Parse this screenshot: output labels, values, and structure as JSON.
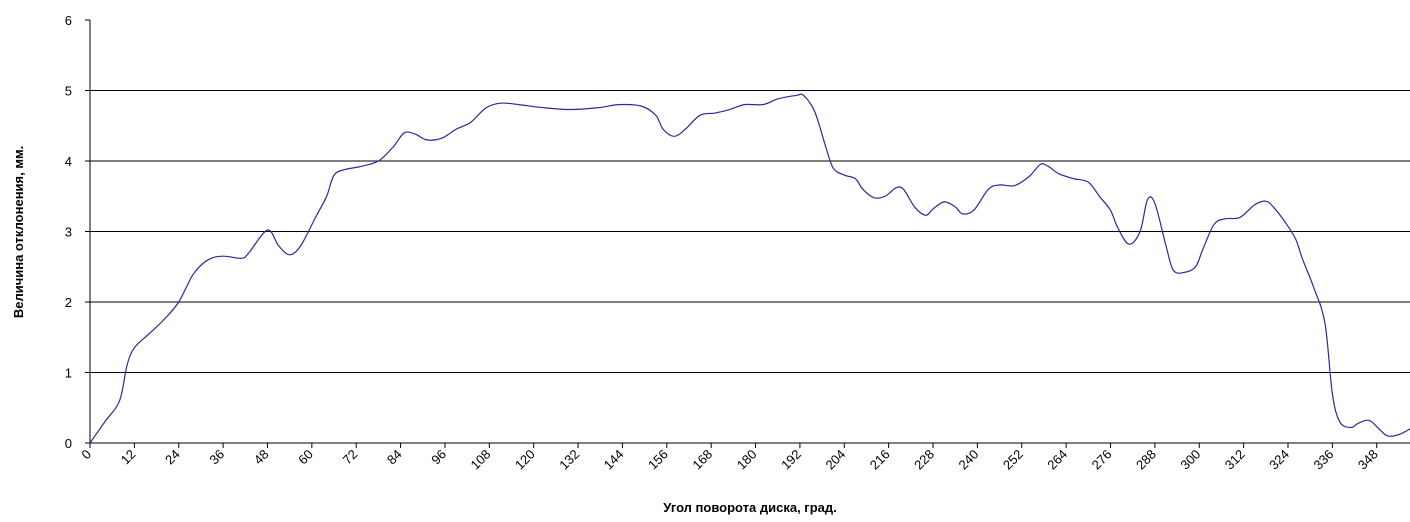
{
  "chart_data": {
    "type": "line",
    "xlabel": "Угол поворота диска, град.",
    "ylabel": "Величина отклонения, мм.",
    "x": [
      0,
      4,
      8,
      10,
      12,
      16,
      20,
      24,
      28,
      32,
      36,
      41,
      43,
      48,
      51,
      54,
      57,
      61,
      64,
      66,
      69,
      73,
      78,
      82,
      85,
      88,
      91,
      95,
      99,
      103,
      107,
      111,
      116,
      122,
      130,
      138,
      143,
      149,
      153,
      155,
      158,
      161,
      165,
      169,
      173,
      177,
      182,
      186,
      191,
      193,
      196,
      199,
      201,
      204,
      207,
      209,
      212,
      215,
      218,
      220,
      223,
      226,
      228,
      231,
      234,
      236,
      239,
      243,
      246,
      250,
      254,
      257,
      259,
      262,
      266,
      270,
      273,
      276,
      278,
      281,
      284,
      286,
      288,
      291,
      293,
      296,
      299,
      301,
      304,
      307,
      311,
      315,
      318,
      320,
      323,
      326,
      328,
      331,
      334,
      336,
      338,
      341,
      343,
      346,
      349,
      351,
      354,
      357
    ],
    "series": [
      {
        "name": "Величина отклонения",
        "color": "#2a2a9c",
        "values": [
          0,
          0.3,
          0.6,
          1.1,
          1.35,
          1.55,
          1.75,
          2.0,
          2.4,
          2.6,
          2.65,
          2.62,
          2.7,
          3.02,
          2.8,
          2.67,
          2.8,
          3.2,
          3.5,
          3.8,
          3.88,
          3.92,
          4.0,
          4.2,
          4.4,
          4.38,
          4.3,
          4.32,
          4.45,
          4.55,
          4.75,
          4.82,
          4.8,
          4.76,
          4.73,
          4.76,
          4.8,
          4.78,
          4.65,
          4.45,
          4.35,
          4.45,
          4.65,
          4.68,
          4.73,
          4.8,
          4.8,
          4.88,
          4.93,
          4.93,
          4.7,
          4.2,
          3.9,
          3.8,
          3.75,
          3.6,
          3.48,
          3.5,
          3.62,
          3.6,
          3.35,
          3.23,
          3.32,
          3.42,
          3.35,
          3.25,
          3.3,
          3.6,
          3.66,
          3.65,
          3.78,
          3.95,
          3.93,
          3.82,
          3.75,
          3.7,
          3.5,
          3.3,
          3.05,
          2.82,
          3.0,
          3.45,
          3.4,
          2.8,
          2.45,
          2.42,
          2.5,
          2.75,
          3.1,
          3.18,
          3.2,
          3.38,
          3.43,
          3.35,
          3.15,
          2.9,
          2.6,
          2.2,
          1.7,
          0.7,
          0.3,
          0.22,
          0.28,
          0.32,
          0.18,
          0.1,
          0.12,
          0.2
        ]
      }
    ],
    "xlim": [
      0,
      357
    ],
    "xticks": [
      0,
      12,
      24,
      36,
      48,
      60,
      72,
      84,
      96,
      108,
      120,
      132,
      144,
      156,
      168,
      180,
      192,
      204,
      216,
      228,
      240,
      252,
      264,
      276,
      288,
      300,
      312,
      324,
      336,
      348
    ],
    "ylim": [
      0,
      6
    ],
    "yticks": [
      0,
      1,
      2,
      3,
      4,
      5,
      6
    ],
    "grid": true
  }
}
